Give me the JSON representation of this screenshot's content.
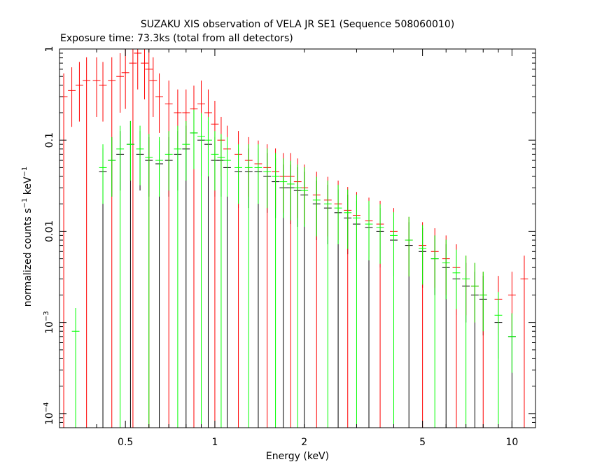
{
  "chart_data": {
    "type": "scatter",
    "title": "SUZAKU XIS observation of VELA JR SE1 (Sequence 508060010)",
    "subtitle": "Exposure time: 73.3ks (total from all detectors)",
    "xlabel": "Energy (keV)",
    "ylabel": {
      "base": "normalized counts s",
      "sup1": "−1",
      "mid": " keV",
      "sup2": "−1"
    },
    "x_scale": "log",
    "y_scale": "log",
    "xlim": [
      0.3,
      12
    ],
    "ylim": [
      7e-05,
      1
    ],
    "x_ticks": [
      {
        "value": 0.5,
        "label": "0.5"
      },
      {
        "value": 1,
        "label": "1"
      },
      {
        "value": 2,
        "label": "2"
      },
      {
        "value": 5,
        "label": "5"
      },
      {
        "value": 10,
        "label": "10"
      }
    ],
    "y_ticks": [
      {
        "value": 1,
        "label": "1"
      },
      {
        "value": 0.1,
        "label": "0.1"
      },
      {
        "value": 0.01,
        "label": "0.01"
      },
      {
        "value": 0.001,
        "base": "10",
        "exp": "−3"
      },
      {
        "value": 0.0001,
        "base": "10",
        "exp": "−4"
      }
    ],
    "series": [
      {
        "color": "#000000",
        "points": [
          [
            0.42,
            0.045
          ],
          [
            0.45,
            0.06
          ],
          [
            0.48,
            0.07
          ],
          [
            0.52,
            0.09
          ],
          [
            0.56,
            0.07
          ],
          [
            0.6,
            0.06
          ],
          [
            0.65,
            0.055
          ],
          [
            0.7,
            0.06
          ],
          [
            0.75,
            0.07
          ],
          [
            0.8,
            0.08
          ],
          [
            0.85,
            0.12
          ],
          [
            0.9,
            0.1
          ],
          [
            0.95,
            0.09
          ],
          [
            1.0,
            0.06
          ],
          [
            1.05,
            0.06
          ],
          [
            1.1,
            0.05
          ],
          [
            1.2,
            0.045
          ],
          [
            1.3,
            0.045
          ],
          [
            1.4,
            0.045
          ],
          [
            1.5,
            0.04
          ],
          [
            1.6,
            0.035
          ],
          [
            1.7,
            0.03
          ],
          [
            1.8,
            0.03
          ],
          [
            1.9,
            0.028
          ],
          [
            2.0,
            0.025
          ],
          [
            2.2,
            0.02
          ],
          [
            2.4,
            0.018
          ],
          [
            2.6,
            0.016
          ],
          [
            2.8,
            0.014
          ],
          [
            3.0,
            0.012
          ],
          [
            3.3,
            0.011
          ],
          [
            3.6,
            0.01
          ],
          [
            4.0,
            0.008
          ],
          [
            4.5,
            0.007
          ],
          [
            5.0,
            0.006
          ],
          [
            5.5,
            0.005
          ],
          [
            6.0,
            0.004
          ],
          [
            6.5,
            0.003
          ],
          [
            7.0,
            0.0025
          ],
          [
            7.5,
            0.002
          ],
          [
            8.0,
            0.0018
          ],
          [
            9.0,
            0.001
          ],
          [
            10.0,
            0.0007
          ]
        ]
      },
      {
        "color": "#ff0000",
        "points": [
          [
            0.31,
            0.3
          ],
          [
            0.33,
            0.35
          ],
          [
            0.35,
            0.4
          ],
          [
            0.37,
            0.45
          ],
          [
            0.4,
            0.45
          ],
          [
            0.42,
            0.4
          ],
          [
            0.45,
            0.45
          ],
          [
            0.48,
            0.5
          ],
          [
            0.5,
            0.55
          ],
          [
            0.53,
            0.7
          ],
          [
            0.55,
            0.9
          ],
          [
            0.58,
            0.7
          ],
          [
            0.6,
            0.6
          ],
          [
            0.62,
            0.45
          ],
          [
            0.65,
            0.3
          ],
          [
            0.7,
            0.25
          ],
          [
            0.75,
            0.2
          ],
          [
            0.8,
            0.2
          ],
          [
            0.85,
            0.22
          ],
          [
            0.9,
            0.25
          ],
          [
            0.95,
            0.2
          ],
          [
            1.0,
            0.15
          ],
          [
            1.05,
            0.1
          ],
          [
            1.1,
            0.08
          ],
          [
            1.2,
            0.07
          ],
          [
            1.3,
            0.06
          ],
          [
            1.4,
            0.055
          ],
          [
            1.5,
            0.05
          ],
          [
            1.6,
            0.045
          ],
          [
            1.7,
            0.04
          ],
          [
            1.8,
            0.04
          ],
          [
            1.9,
            0.035
          ],
          [
            2.0,
            0.03
          ],
          [
            2.2,
            0.025
          ],
          [
            2.4,
            0.022
          ],
          [
            2.6,
            0.02
          ],
          [
            2.8,
            0.017
          ],
          [
            3.0,
            0.015
          ],
          [
            3.3,
            0.013
          ],
          [
            3.6,
            0.012
          ],
          [
            4.0,
            0.01
          ],
          [
            4.5,
            0.008
          ],
          [
            5.0,
            0.007
          ],
          [
            5.5,
            0.006
          ],
          [
            6.0,
            0.005
          ],
          [
            6.5,
            0.004
          ],
          [
            7.0,
            0.003
          ],
          [
            7.5,
            0.0025
          ],
          [
            8.0,
            0.002
          ],
          [
            9.0,
            0.0018
          ],
          [
            10.0,
            0.002
          ],
          [
            11.0,
            0.003
          ]
        ]
      },
      {
        "color": "#00ff00",
        "points": [
          [
            0.34,
            0.0008
          ],
          [
            0.42,
            0.05
          ],
          [
            0.45,
            0.06
          ],
          [
            0.48,
            0.08
          ],
          [
            0.52,
            0.09
          ],
          [
            0.56,
            0.08
          ],
          [
            0.6,
            0.065
          ],
          [
            0.65,
            0.06
          ],
          [
            0.7,
            0.07
          ],
          [
            0.75,
            0.08
          ],
          [
            0.8,
            0.09
          ],
          [
            0.85,
            0.12
          ],
          [
            0.9,
            0.11
          ],
          [
            0.95,
            0.1
          ],
          [
            1.0,
            0.07
          ],
          [
            1.05,
            0.065
          ],
          [
            1.1,
            0.06
          ],
          [
            1.2,
            0.05
          ],
          [
            1.3,
            0.05
          ],
          [
            1.4,
            0.05
          ],
          [
            1.5,
            0.045
          ],
          [
            1.6,
            0.04
          ],
          [
            1.7,
            0.035
          ],
          [
            1.8,
            0.033
          ],
          [
            1.9,
            0.03
          ],
          [
            2.0,
            0.028
          ],
          [
            2.2,
            0.022
          ],
          [
            2.4,
            0.02
          ],
          [
            2.6,
            0.018
          ],
          [
            2.8,
            0.016
          ],
          [
            3.0,
            0.014
          ],
          [
            3.3,
            0.012
          ],
          [
            3.6,
            0.011
          ],
          [
            4.0,
            0.009
          ],
          [
            4.5,
            0.008
          ],
          [
            5.0,
            0.0065
          ],
          [
            5.5,
            0.005
          ],
          [
            6.0,
            0.0045
          ],
          [
            6.5,
            0.0035
          ],
          [
            7.0,
            0.003
          ],
          [
            7.5,
            0.0025
          ],
          [
            8.0,
            0.002
          ],
          [
            9.0,
            0.0012
          ],
          [
            10.0,
            0.0007
          ]
        ]
      }
    ]
  }
}
